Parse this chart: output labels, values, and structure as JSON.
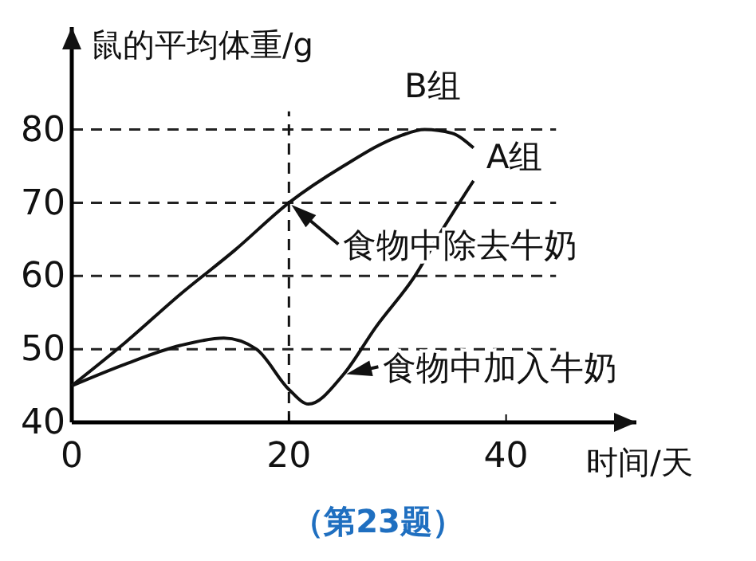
{
  "chart_data": {
    "type": "line",
    "xlabel": "时间/天",
    "ylabel": "鼠的平均体重/g",
    "xlim": [
      0,
      52
    ],
    "ylim": [
      40,
      94
    ],
    "xticks": [
      0,
      20,
      40
    ],
    "yticks": [
      40,
      50,
      60,
      70,
      80
    ],
    "grid": "y",
    "legend": false,
    "marker": "none",
    "line_style": "solid",
    "series": [
      {
        "name": "B组",
        "color": "#111111",
        "x": [
          0,
          5,
          10,
          15,
          20,
          25,
          30,
          32.5,
          35,
          37
        ],
        "values": [
          45,
          51,
          57.5,
          63.5,
          70,
          75,
          79,
          80,
          79.5,
          77.5
        ]
      },
      {
        "name": "A组",
        "color": "#111111",
        "x": [
          0,
          5,
          10,
          14,
          17,
          20,
          21.8,
          25,
          28,
          31.6,
          34,
          37
        ],
        "values": [
          45,
          48,
          50.5,
          51.5,
          50,
          44.5,
          42.5,
          46.5,
          53,
          60,
          66,
          73
        ]
      }
    ],
    "ref_lines": [
      {
        "axis": "x",
        "value": 20,
        "line_style": "dashed",
        "color": "#111111"
      }
    ],
    "annotations": [
      {
        "text": "食物中除去牛奶",
        "x": 20,
        "y": 70
      },
      {
        "text": "食物中加入牛奶",
        "x": 25,
        "y": 46.5
      },
      "（第23题）"
    ]
  }
}
